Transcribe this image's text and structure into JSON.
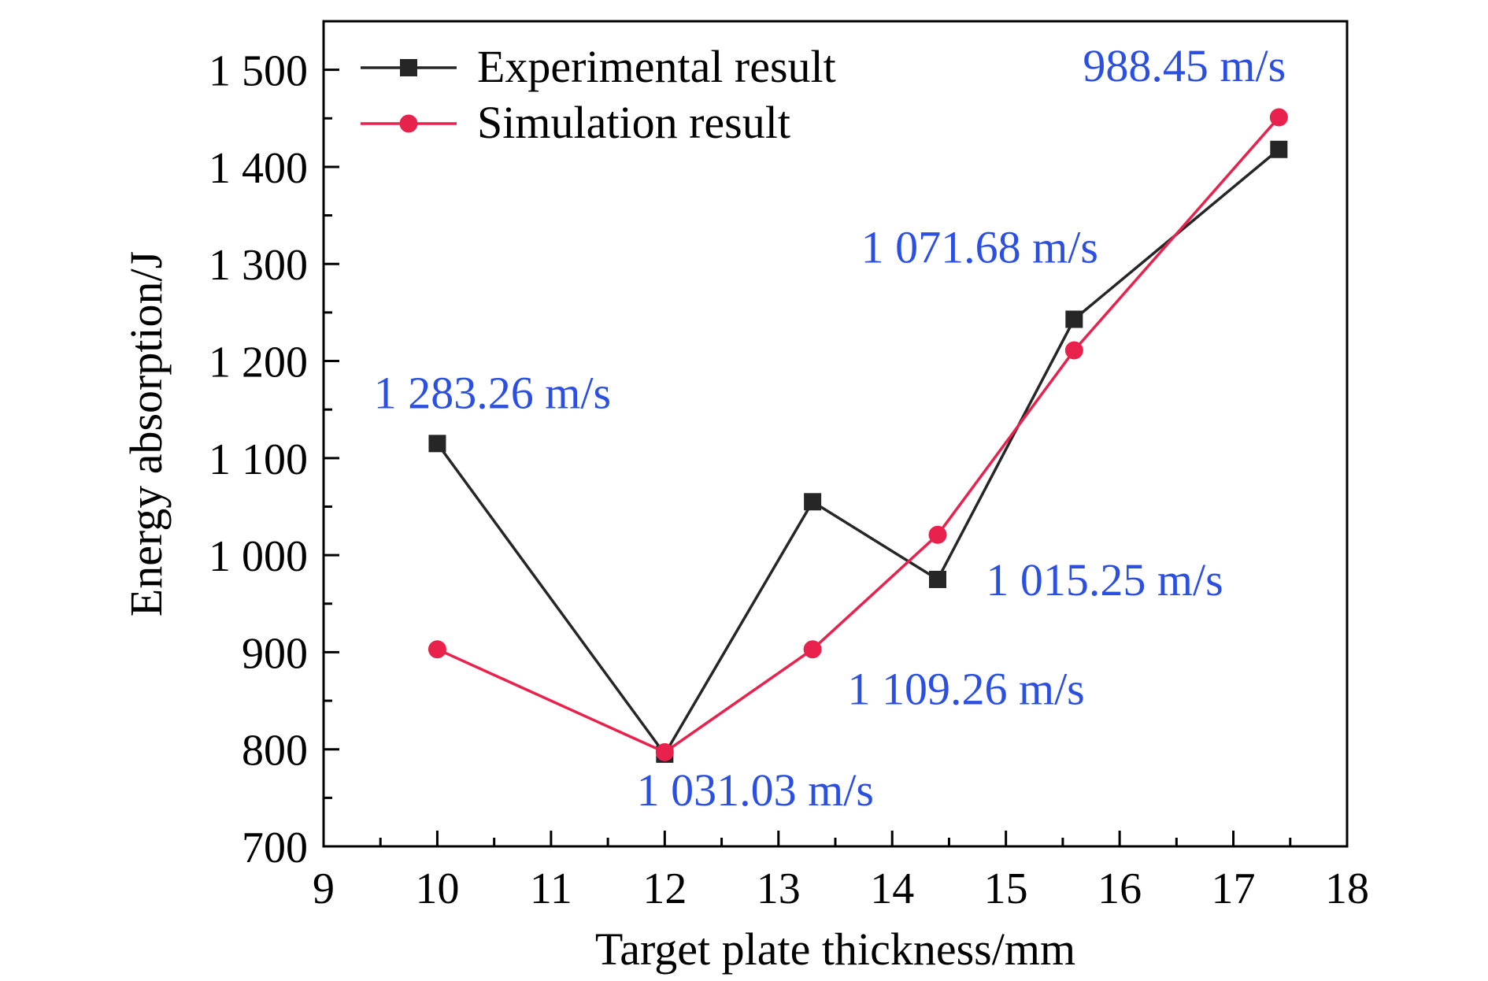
{
  "chart_data": {
    "type": "line",
    "xlabel": "Target plate thickness/mm",
    "ylabel": "Energy absorption/J",
    "xlim": [
      9,
      18
    ],
    "ylim": [
      700,
      1550
    ],
    "x_ticks": [
      9,
      10,
      11,
      12,
      13,
      14,
      15,
      16,
      17,
      18
    ],
    "x_tick_labels": [
      "9",
      "10",
      "11",
      "12",
      "13",
      "14",
      "15",
      "16",
      "17",
      "18"
    ],
    "y_ticks": [
      700,
      800,
      900,
      1000,
      1100,
      1200,
      1300,
      1400,
      1500
    ],
    "y_tick_labels": [
      "700",
      "800",
      "900",
      "1 000",
      "1 100",
      "1 200",
      "1 300",
      "1 400",
      "1 500"
    ],
    "grid": false,
    "legend_position": "top-left",
    "series": [
      {
        "name": "Experimental result",
        "color": "#262626",
        "marker": "square",
        "x": [
          10,
          12,
          13.3,
          14.4,
          15.6,
          17.4
        ],
        "y": [
          1115,
          795,
          1055,
          975,
          1243,
          1418
        ]
      },
      {
        "name": "Simulation result",
        "color": "#e8224c",
        "marker": "circle",
        "x": [
          10,
          12,
          13.3,
          14.4,
          15.6,
          17.4
        ],
        "y": [
          903,
          797,
          903,
          1021,
          1211,
          1451
        ]
      }
    ],
    "annotations": [
      {
        "text": "1 283.26 m/s",
        "x": 10,
        "y": 1115
      },
      {
        "text": "1 031.03 m/s",
        "x": 12,
        "y": 795
      },
      {
        "text": "1 109.26 m/s",
        "x": 13.3,
        "y": 903
      },
      {
        "text": "1 015.25 m/s",
        "x": 14.4,
        "y": 975
      },
      {
        "text": "1 071.68 m/s",
        "x": 15.6,
        "y": 1243
      },
      {
        "text": "988.45 m/s",
        "x": 17.4,
        "y": 1451
      }
    ],
    "annotation_color": "#2b4fe0"
  }
}
